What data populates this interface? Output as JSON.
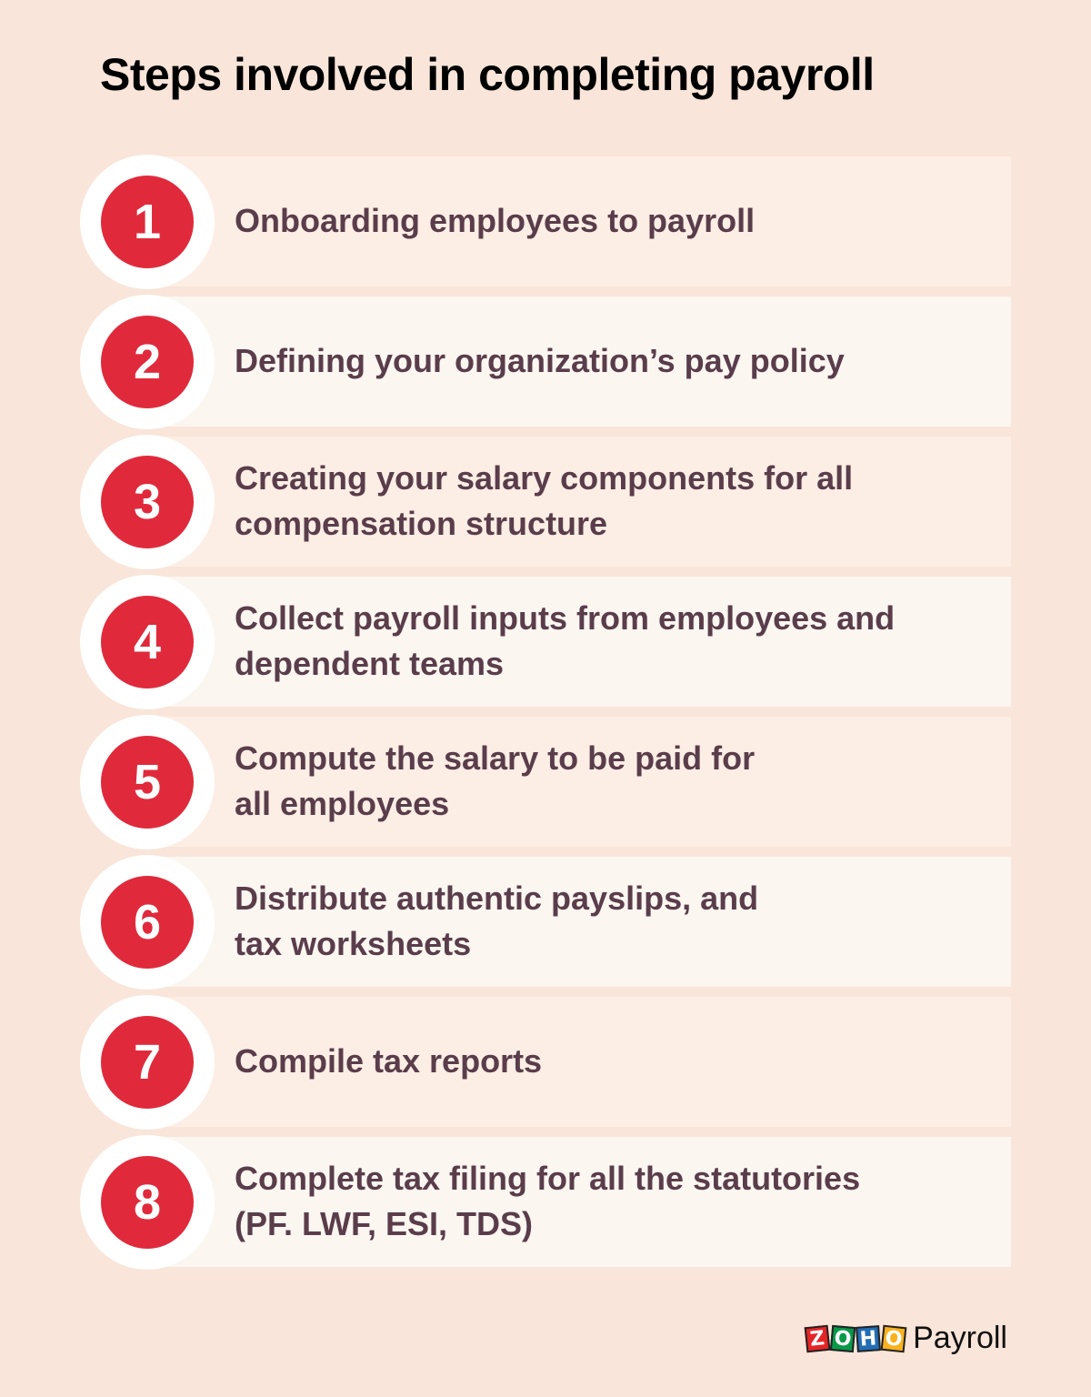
{
  "title": "Steps involved in completing payroll",
  "colors": {
    "background": "#f9e5d9",
    "badge": "#e02a3b",
    "text": "#5a3d4b"
  },
  "steps": [
    {
      "number": "1",
      "text": "Onboarding employees to payroll"
    },
    {
      "number": "2",
      "text": "Defining your organization’s pay policy"
    },
    {
      "number": "3",
      "text": "Creating your salary components for all\ncompensation structure"
    },
    {
      "number": "4",
      "text": "Collect payroll inputs from employees and\ndependent teams"
    },
    {
      "number": "5",
      "text": "Compute the salary to be paid for\nall employees"
    },
    {
      "number": "6",
      "text": "Distribute authentic payslips, and\ntax worksheets"
    },
    {
      "number": "7",
      "text": "Compile tax reports"
    },
    {
      "number": "8",
      "text": "Complete tax filing for all the statutories\n(PF. LWF, ESI, TDS)"
    }
  ],
  "brand": {
    "logo_letters": [
      "Z",
      "O",
      "H",
      "O"
    ],
    "product": "Payroll"
  }
}
